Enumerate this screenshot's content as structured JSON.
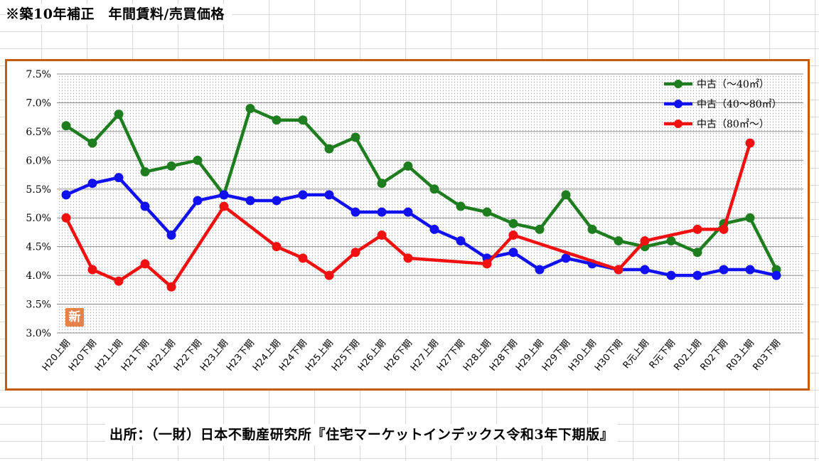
{
  "header": {
    "title": "※築10年補正　年間賃料/売買価格"
  },
  "source": {
    "text": "出所：（一財）日本不動産研究所『住宅マーケットインデックス令和3年下期版』"
  },
  "badge": {
    "label": "新"
  },
  "colors": {
    "frame": "#c55a11",
    "green": "#1e7d1e",
    "blue": "#1010f0",
    "red": "#f01010"
  },
  "chart_data": {
    "type": "line",
    "title": "",
    "xlabel": "",
    "ylabel": "",
    "ylim": [
      3.0,
      7.5
    ],
    "y_ticks": [
      "3.0%",
      "3.5%",
      "4.0%",
      "4.5%",
      "5.0%",
      "5.5%",
      "6.0%",
      "6.5%",
      "7.0%",
      "7.5%"
    ],
    "grid": true,
    "legend_position": "top-right",
    "categories": [
      "H20上期",
      "H20下期",
      "H21上期",
      "H21下期",
      "H22上期",
      "H22下期",
      "H23上期",
      "H23下期",
      "H24上期",
      "H24下期",
      "H25上期",
      "H25下期",
      "H26上期",
      "H26下期",
      "H27上期",
      "H27下期",
      "H28上期",
      "H28下期",
      "H29上期",
      "H29下期",
      "H30上期",
      "H30下期",
      "R元上期",
      "R元下期",
      "R02上期",
      "R02下期",
      "R03上期",
      "R03下期"
    ],
    "series": [
      {
        "name": "中古（～40㎡）",
        "color": "#1e7d1e",
        "values": [
          6.6,
          6.3,
          6.8,
          5.8,
          5.9,
          6.0,
          5.4,
          6.9,
          6.7,
          6.7,
          6.2,
          6.4,
          5.6,
          5.9,
          5.5,
          5.2,
          5.1,
          4.9,
          4.8,
          5.4,
          4.8,
          4.6,
          4.5,
          4.6,
          4.4,
          4.9,
          5.0,
          4.1
        ]
      },
      {
        "name": "中古（40～80㎡）",
        "color": "#1010f0",
        "values": [
          5.4,
          5.6,
          5.7,
          5.2,
          4.7,
          5.3,
          5.4,
          5.3,
          5.3,
          5.4,
          5.4,
          5.1,
          5.1,
          5.1,
          4.8,
          4.6,
          4.3,
          4.4,
          4.1,
          4.3,
          4.2,
          4.1,
          4.1,
          4.0,
          4.0,
          4.1,
          4.1,
          4.0
        ]
      },
      {
        "name": "中古（80㎡～）",
        "color": "#f01010",
        "values": [
          5.0,
          4.1,
          3.9,
          4.2,
          3.8,
          null,
          5.2,
          null,
          4.5,
          4.3,
          4.0,
          4.4,
          4.7,
          4.3,
          null,
          null,
          4.2,
          4.7,
          null,
          null,
          null,
          4.1,
          4.6,
          null,
          4.8,
          4.8,
          6.3,
          null
        ]
      }
    ]
  }
}
